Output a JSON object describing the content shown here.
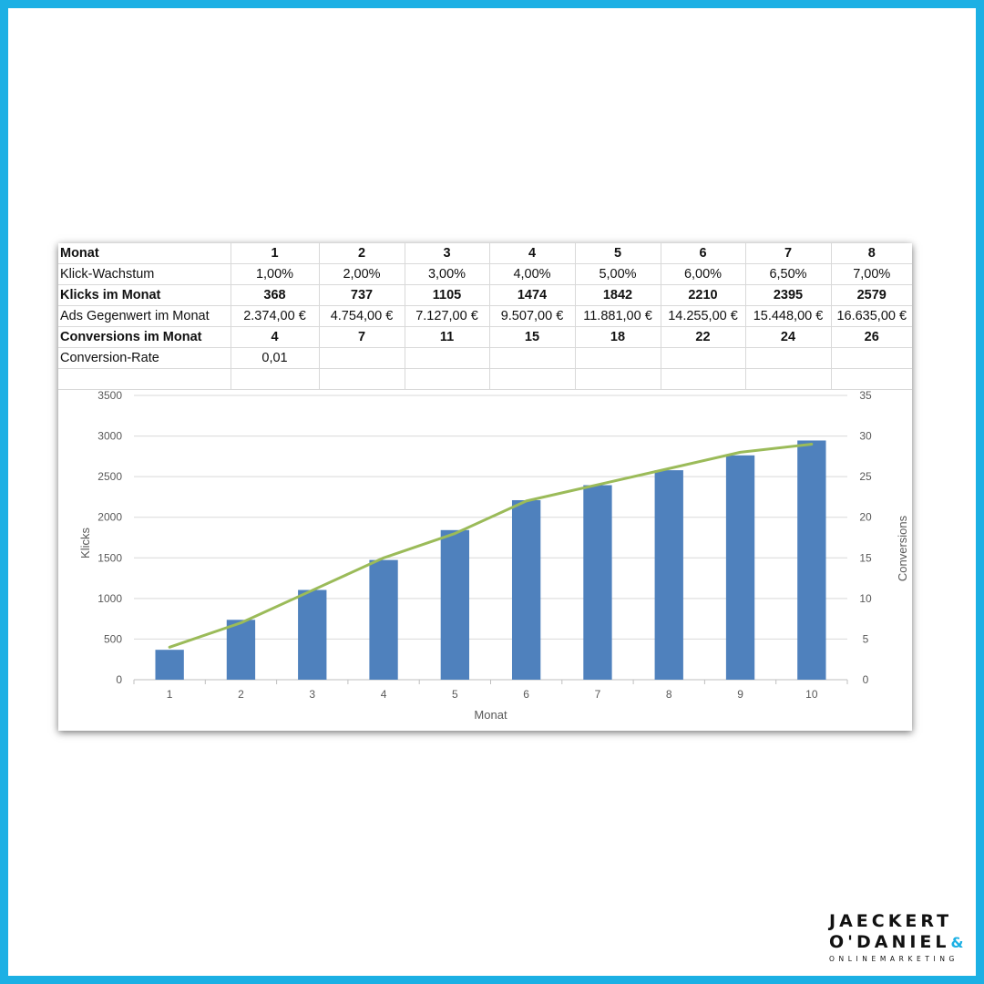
{
  "table": {
    "header": [
      "Monat",
      "1",
      "2",
      "3",
      "4",
      "5",
      "6",
      "7",
      "8"
    ],
    "rows": [
      {
        "label": "Klick-Wachstum",
        "bold": false,
        "cells": [
          "1,00%",
          "2,00%",
          "3,00%",
          "4,00%",
          "5,00%",
          "6,00%",
          "6,50%",
          "7,00%"
        ]
      },
      {
        "label": "Klicks im Monat",
        "bold": true,
        "cells": [
          "368",
          "737",
          "1105",
          "1474",
          "1842",
          "2210",
          "2395",
          "2579"
        ]
      },
      {
        "label": "Ads Gegenwert im Monat",
        "bold": false,
        "cells": [
          "2.374,00 €",
          "4.754,00 €",
          "7.127,00 €",
          "9.507,00 €",
          "11.881,00 €",
          "14.255,00 €",
          "15.448,00 €",
          "16.635,00 €"
        ]
      },
      {
        "label": "Conversions im Monat",
        "bold": true,
        "cells": [
          "4",
          "7",
          "11",
          "15",
          "18",
          "22",
          "24",
          "26"
        ]
      },
      {
        "label": "Conversion-Rate",
        "bold": false,
        "cells": [
          "0,01",
          "",
          "",
          "",
          "",
          "",
          "",
          ""
        ]
      },
      {
        "label": "",
        "bold": false,
        "cells": [
          "",
          "",
          "",
          "",
          "",
          "",
          "",
          ""
        ]
      }
    ]
  },
  "chart_data": {
    "type": "bar",
    "title": "",
    "xlabel": "Monat",
    "ylabel": "Klicks",
    "y2label": "Conversions",
    "categories": [
      "1",
      "2",
      "3",
      "4",
      "5",
      "6",
      "7",
      "8",
      "9",
      "10"
    ],
    "ylim": [
      0,
      3500
    ],
    "y_ticks": [
      "0",
      "500",
      "1000",
      "1500",
      "2000",
      "2500",
      "3000",
      "3500"
    ],
    "y2lim": [
      0,
      35
    ],
    "y2_ticks": [
      "0",
      "5",
      "10",
      "15",
      "20",
      "25",
      "30",
      "35"
    ],
    "grid": true,
    "series": [
      {
        "type": "bar",
        "axis": "left",
        "color": "#4f81bd",
        "values": [
          368,
          737,
          1105,
          1474,
          1842,
          2210,
          2395,
          2579,
          2762,
          2945
        ]
      },
      {
        "type": "line",
        "axis": "right",
        "color": "#9bbb59",
        "values": [
          4,
          7,
          11,
          15,
          18,
          22,
          24,
          26,
          28,
          29
        ]
      }
    ]
  },
  "logo": {
    "line1": "JAECKERT",
    "line2": "O'DANIEL",
    "mark": "&",
    "line3": "ONLINEMARKETING"
  }
}
